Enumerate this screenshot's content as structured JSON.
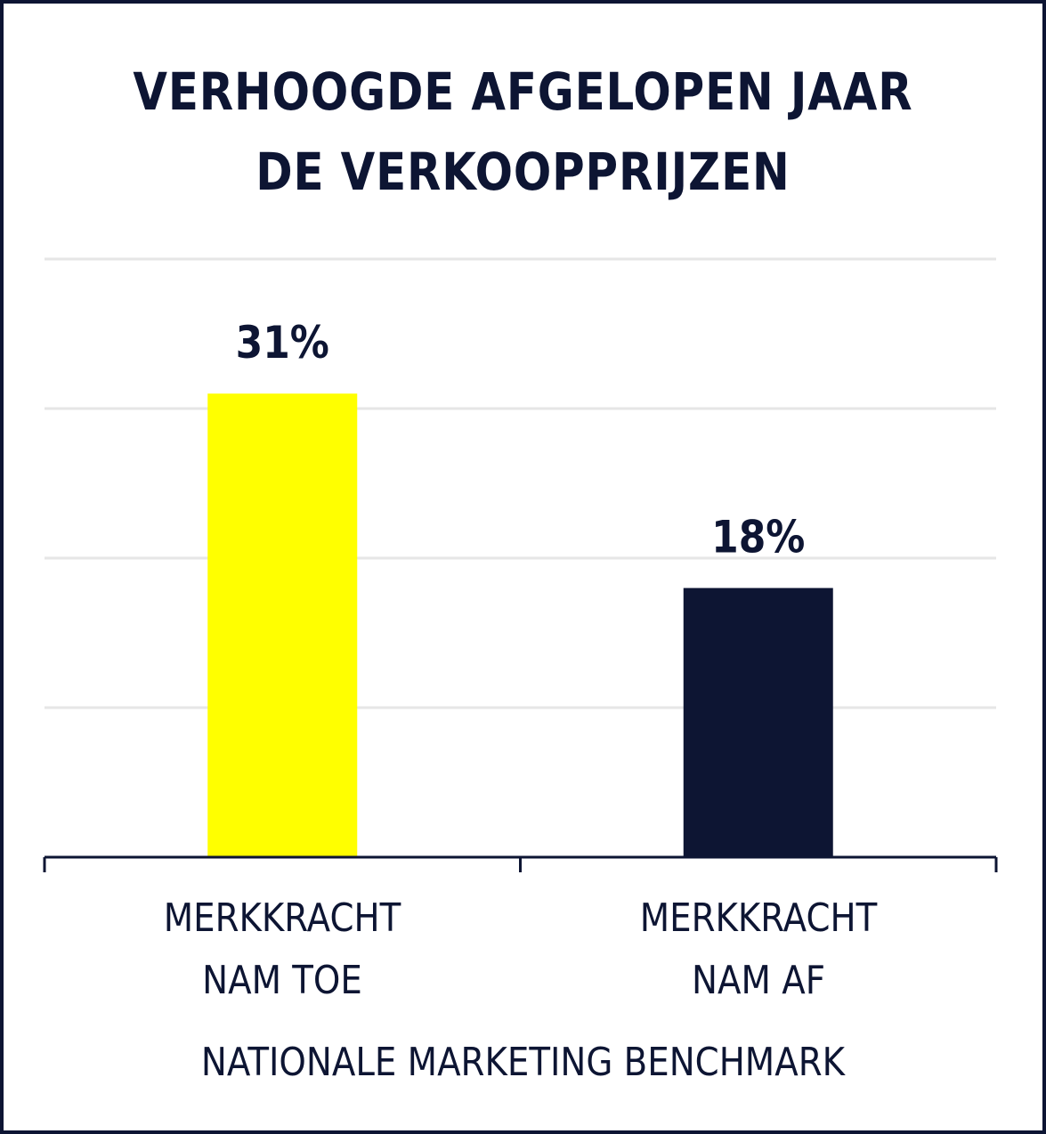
{
  "chart_data": {
    "type": "bar",
    "title_lines": [
      "VERHOOGDE AFGELOPEN JAAR",
      "DE VERKOOPPRIJZEN"
    ],
    "categories": [
      [
        "MERKKRACHT",
        "NAM TOE"
      ],
      [
        "MERKKRACHT",
        "NAM AF"
      ]
    ],
    "values": [
      31,
      18
    ],
    "value_labels": [
      "31%",
      "18%"
    ],
    "bar_colors": [
      "#ffff00",
      "#0d1533"
    ],
    "ylim": [
      0,
      40
    ],
    "grid": true,
    "source": "NATIONALE MARKETING BENCHMARK"
  },
  "colors": {
    "text": "#0d1533",
    "grid": "#e6e6e6",
    "frame": "#0d1533"
  }
}
